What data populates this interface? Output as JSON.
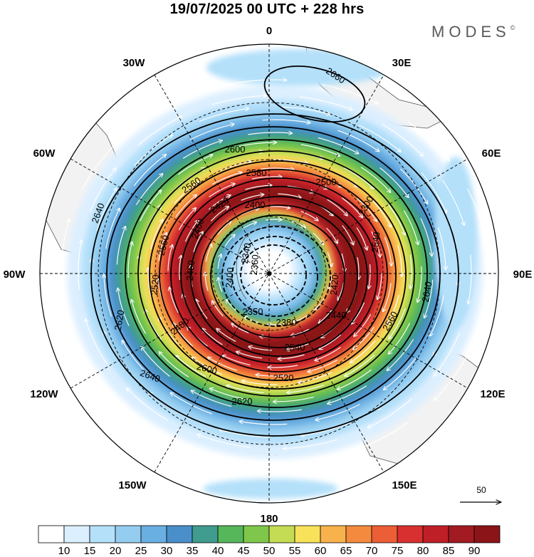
{
  "header": {
    "title": "19/07/2025  00 UTC  + 228 hrs",
    "brand": "MODES",
    "brand_mark": "©"
  },
  "map": {
    "projection": "south-polar-stereographic",
    "longitude_labels": {
      "top": "0",
      "upper_right": "30E",
      "right_upper": "60E",
      "right": "90E",
      "right_lower": "120E",
      "lower_right": "150E",
      "bottom": "180",
      "lower_left": "150W",
      "left_lower": "120W",
      "left": "90W",
      "left_upper": "60W",
      "upper_left": "30W"
    },
    "contour_labels": [
      "2660",
      "2640",
      "2640",
      "2640",
      "2620",
      "2620",
      "2600",
      "2600",
      "2580",
      "2560",
      "2560",
      "2560",
      "2540",
      "2540",
      "2520",
      "2520",
      "2500",
      "2480",
      "2460",
      "2460",
      "2440",
      "2420",
      "2420",
      "2400",
      "2400",
      "2380",
      "2360",
      "2350",
      "2340",
      "2300"
    ],
    "wind_reference": {
      "value": "50"
    }
  },
  "colorbar": {
    "ticks": [
      "10",
      "15",
      "20",
      "25",
      "30",
      "35",
      "40",
      "45",
      "50",
      "55",
      "60",
      "65",
      "70",
      "75",
      "80",
      "85",
      "90"
    ],
    "colors": [
      "#ffffff",
      "#dcefff",
      "#b4e0fa",
      "#94cdf0",
      "#6aafe2",
      "#4a8fca",
      "#3f9c8f",
      "#55b65a",
      "#7ec74a",
      "#c3dc54",
      "#f7e25a",
      "#f8b24c",
      "#f48a3d",
      "#ec5e35",
      "#d83030",
      "#bf1f26",
      "#a21a22",
      "#8a1418"
    ]
  },
  "style": {
    "land": "#f2f2f2",
    "coast": "#555555"
  }
}
